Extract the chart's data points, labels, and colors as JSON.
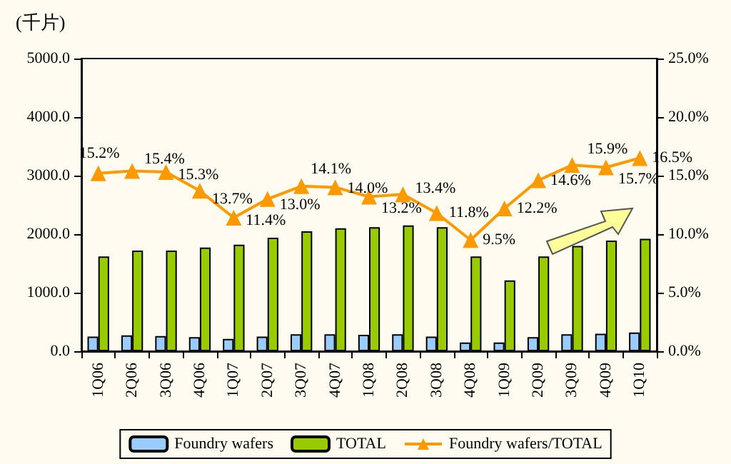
{
  "chart_data": {
    "type": "bar",
    "ylabel": "(千片)",
    "categories": [
      "1Q06",
      "2Q06",
      "3Q06",
      "4Q06",
      "1Q07",
      "2Q07",
      "3Q07",
      "4Q07",
      "1Q08",
      "2Q08",
      "3Q08",
      "4Q08",
      "1Q09",
      "2Q09",
      "3Q09",
      "4Q09",
      "1Q10"
    ],
    "series": [
      {
        "name": "Foundry wafers",
        "color": "#99ccff",
        "values": [
          250,
          270,
          260,
          240,
          210,
          250,
          290,
          290,
          280,
          290,
          250,
          150,
          150,
          240,
          290,
          300,
          320
        ]
      },
      {
        "name": "TOTAL",
        "color": "#99cc00",
        "values": [
          1620,
          1720,
          1720,
          1770,
          1820,
          1940,
          2050,
          2100,
          2120,
          2150,
          2120,
          1620,
          1210,
          1620,
          1800,
          1890,
          1920
        ]
      },
      {
        "name": "Foundry wafers/TOTAL",
        "type": "line",
        "axis": "y2",
        "color": "#ff9900",
        "marker": "triangle",
        "values": [
          15.2,
          15.4,
          15.3,
          13.7,
          11.4,
          13.0,
          14.1,
          14.0,
          13.2,
          13.4,
          11.8,
          9.5,
          12.2,
          14.6,
          15.9,
          15.7,
          16.5
        ],
        "value_labels": [
          "15.2%",
          "15.4%",
          "15.3%",
          "13.7%",
          "11.4%",
          "13.0%",
          "14.1%",
          "14.0%",
          "13.2%",
          "13.4%",
          "11.8%",
          "9.5%",
          "12.2%",
          "14.6%",
          "15.9%",
          "15.7%",
          "16.5%"
        ]
      }
    ],
    "ylim": [
      0,
      5000
    ],
    "yticks": [
      {
        "value": 0,
        "label": "0.0"
      },
      {
        "value": 1000,
        "label": "1000.0"
      },
      {
        "value": 2000,
        "label": "2000.0"
      },
      {
        "value": 3000,
        "label": "3000.0"
      },
      {
        "value": 4000,
        "label": "4000.0"
      },
      {
        "value": 5000,
        "label": "5000.0"
      }
    ],
    "y2lim": [
      0,
      25
    ],
    "y2ticks": [
      {
        "value": 0,
        "label": "0.0%"
      },
      {
        "value": 5,
        "label": "5.0%"
      },
      {
        "value": 10,
        "label": "10.0%"
      },
      {
        "value": 15,
        "label": "15.0%"
      },
      {
        "value": 20,
        "label": "20.0%"
      },
      {
        "value": 25,
        "label": "25.0%"
      }
    ],
    "grid": false,
    "legend": "bottom"
  }
}
